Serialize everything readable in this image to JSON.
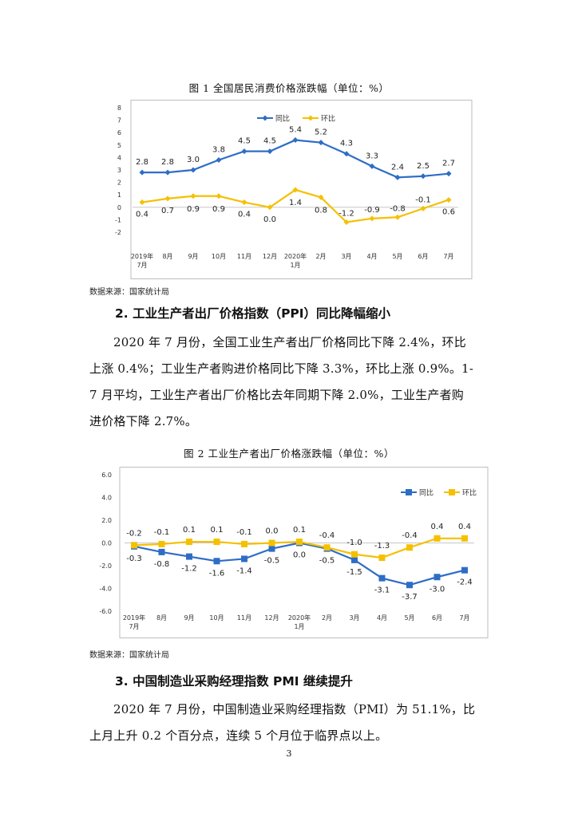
{
  "chart1": {
    "caption": "图 1    全国居民消费价格涨跌幅（单位：%）",
    "source": "数据来源：国家统计局",
    "chart_data": {
      "type": "line",
      "title": "全国居民消费价格涨跌幅（单位：%）",
      "categories": [
        "2019年\n7月",
        "8月",
        "9月",
        "10月",
        "11月",
        "12月",
        "2020年\n1月",
        "2月",
        "3月",
        "4月",
        "5月",
        "6月",
        "7月"
      ],
      "y_ticks": [
        "8",
        "7",
        "6",
        "5",
        "4",
        "3",
        "2",
        "1",
        "0",
        "-1",
        "-2"
      ],
      "ylim": [
        -2,
        8
      ],
      "legend_position": "top",
      "series": [
        {
          "name": "同比",
          "color": "#2e6dc6",
          "values": [
            2.8,
            2.8,
            3.0,
            3.8,
            4.5,
            4.5,
            5.4,
            5.2,
            4.3,
            3.3,
            2.4,
            2.5,
            2.7
          ],
          "labels": [
            "2.8",
            "2.8",
            "3.0",
            "3.8",
            "4.5",
            "4.5",
            "5.4",
            "5.2",
            "4.3",
            "3.3",
            "2.4",
            "2.5",
            "2.7"
          ]
        },
        {
          "name": "环比",
          "color": "#f5c000",
          "values": [
            0.4,
            0.7,
            0.9,
            0.9,
            0.4,
            0.0,
            1.4,
            0.8,
            -1.2,
            -0.9,
            -0.8,
            -0.1,
            0.6
          ],
          "labels": [
            "0.4",
            "0.7",
            "0.9",
            "0.9",
            "0.4",
            "0.0",
            "1.4",
            "0.8",
            "-1.2",
            "-0.9",
            "-0.8",
            "-0.1",
            "0.6"
          ]
        }
      ]
    }
  },
  "section2": {
    "heading": "2. 工业生产者出厂价格指数（PPI）同比降幅缩小",
    "lines": [
      "2020 年 7 月份，全国工业生产者出厂价格同比下降 2.4%，环比",
      "上涨 0.4%；工业生产者购进价格同比下降 3.3%，环比上涨 0.9%。1-",
      "7 月平均，工业生产者出厂价格比去年同期下降 2.0%，工业生产者购",
      "进价格下降 2.7%。"
    ]
  },
  "chart2": {
    "caption": "图 2    工业生产者出厂价格涨跌幅（单位：%）",
    "source": "数据来源：国家统计局",
    "chart_data": {
      "type": "line",
      "title": "工业生产者出厂价格涨跌幅（单位：%）",
      "categories": [
        "2019年\n7月",
        "8月",
        "9月",
        "10月",
        "11月",
        "12月",
        "2020年\n1月",
        "2月",
        "3月",
        "4月",
        "5月",
        "6月",
        "7月"
      ],
      "y_ticks": [
        "6.0",
        "4.0",
        "2.0",
        "0.0",
        "-2.0",
        "-4.0",
        "-6.0"
      ],
      "ylim": [
        -6,
        6
      ],
      "legend_position": "top-right",
      "series": [
        {
          "name": "同比",
          "color": "#2e6dc6",
          "values": [
            -0.3,
            -0.8,
            -1.2,
            -1.6,
            -1.4,
            -0.5,
            0.0,
            -0.5,
            -1.5,
            -3.1,
            -3.7,
            -3.0,
            -2.4
          ],
          "labels": [
            "-0.3",
            "-0.8",
            "-1.2",
            "-1.6",
            "-1.4",
            "-0.5",
            "0.0",
            "-0.5",
            "-1.5",
            "-3.1",
            "-3.7",
            "-3.0",
            "-2.4"
          ]
        },
        {
          "name": "环比",
          "color": "#f5c000",
          "values": [
            -0.2,
            -0.1,
            0.1,
            0.1,
            -0.1,
            0.0,
            0.1,
            -0.4,
            -1.0,
            -1.3,
            -0.4,
            0.4,
            0.4
          ],
          "labels": [
            "-0.2",
            "-0.1",
            "0.1",
            "0.1",
            "-0.1",
            "0.0",
            "0.1",
            "-0.4",
            "-1.0",
            "-1.3",
            "-0.4",
            "0.4",
            "0.4"
          ]
        }
      ]
    }
  },
  "section3": {
    "heading": "3. 中国制造业采购经理指数 PMI 继续提升",
    "lines": [
      "2020 年 7 月份，中国制造业采购经理指数（PMI）为 51.1%，比",
      "上月上升 0.2 个百分点，连续 5 个月位于临界点以上。"
    ]
  },
  "page_number": "3"
}
